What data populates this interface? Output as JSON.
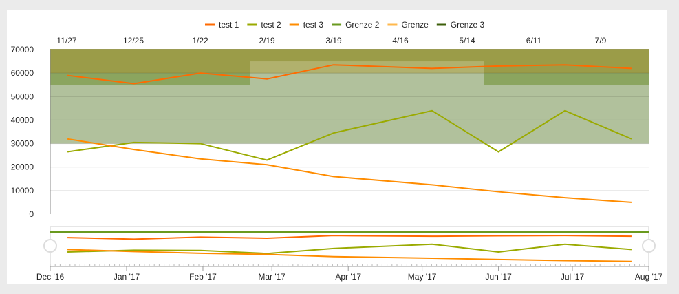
{
  "chart_data": {
    "type": "line",
    "legend": [
      {
        "name": "test 1",
        "color": "#ff6a00"
      },
      {
        "name": "test 2",
        "color": "#9aaa00"
      },
      {
        "name": "test 3",
        "color": "#ff8c00"
      },
      {
        "name": "Grenze 2",
        "color": "#6a9a1f"
      },
      {
        "name": "Grenze",
        "color": "#ffb84d"
      },
      {
        "name": "Grenze 3",
        "color": "#3d5f0a"
      }
    ],
    "legend_position": "top-center",
    "top_axis_labels": [
      "11/27",
      "12/25",
      "1/22",
      "2/19",
      "3/19",
      "4/16",
      "5/14",
      "6/11",
      "7/9"
    ],
    "yticks": [
      0,
      10000,
      20000,
      30000,
      40000,
      50000,
      60000,
      70000
    ],
    "ylim": [
      0,
      70000
    ],
    "x_days_from_dec1": [
      7,
      34,
      61,
      88,
      115,
      155,
      182,
      209,
      236
    ],
    "series": [
      {
        "name": "test 1",
        "values": [
          59000,
          55500,
          60000,
          57500,
          63500,
          62000,
          63000,
          63500,
          62000
        ]
      },
      {
        "name": "test 2",
        "values": [
          26500,
          30500,
          30000,
          23000,
          34500,
          44000,
          26500,
          44000,
          32000
        ]
      },
      {
        "name": "test 3",
        "values": [
          32000,
          27500,
          23500,
          21000,
          16000,
          12500,
          9500,
          7000,
          5000
        ]
      }
    ],
    "bands": [
      {
        "from_day": 0,
        "to_day": 243,
        "low": 30000,
        "high": 70000,
        "color": "#b1c19c"
      },
      {
        "from_day": 0,
        "to_day": 243,
        "low": 60000,
        "high": 70000,
        "color": "#9b9c48"
      },
      {
        "from_day": 0,
        "to_day": 81,
        "low": 55000,
        "high": 60000,
        "color": "#8ba55f"
      },
      {
        "from_day": 81,
        "to_day": 176,
        "low": 60000,
        "high": 65000,
        "color": "#b1b16d"
      },
      {
        "from_day": 176,
        "to_day": 243,
        "low": 55000,
        "high": 60000,
        "color": "#8ba55f"
      }
    ],
    "navigator_labels": [
      {
        "label": "Dec '16",
        "day": 0
      },
      {
        "label": "Jan '17",
        "day": 31
      },
      {
        "label": "Feb '17",
        "day": 62
      },
      {
        "label": "Mar '17",
        "day": 90
      },
      {
        "label": "Apr '17",
        "day": 121
      },
      {
        "label": "May '17",
        "day": 151
      },
      {
        "label": "Jun '17",
        "day": 182
      },
      {
        "label": "Jul '17",
        "day": 212
      },
      {
        "label": "Aug '17",
        "day": 243
      }
    ]
  }
}
